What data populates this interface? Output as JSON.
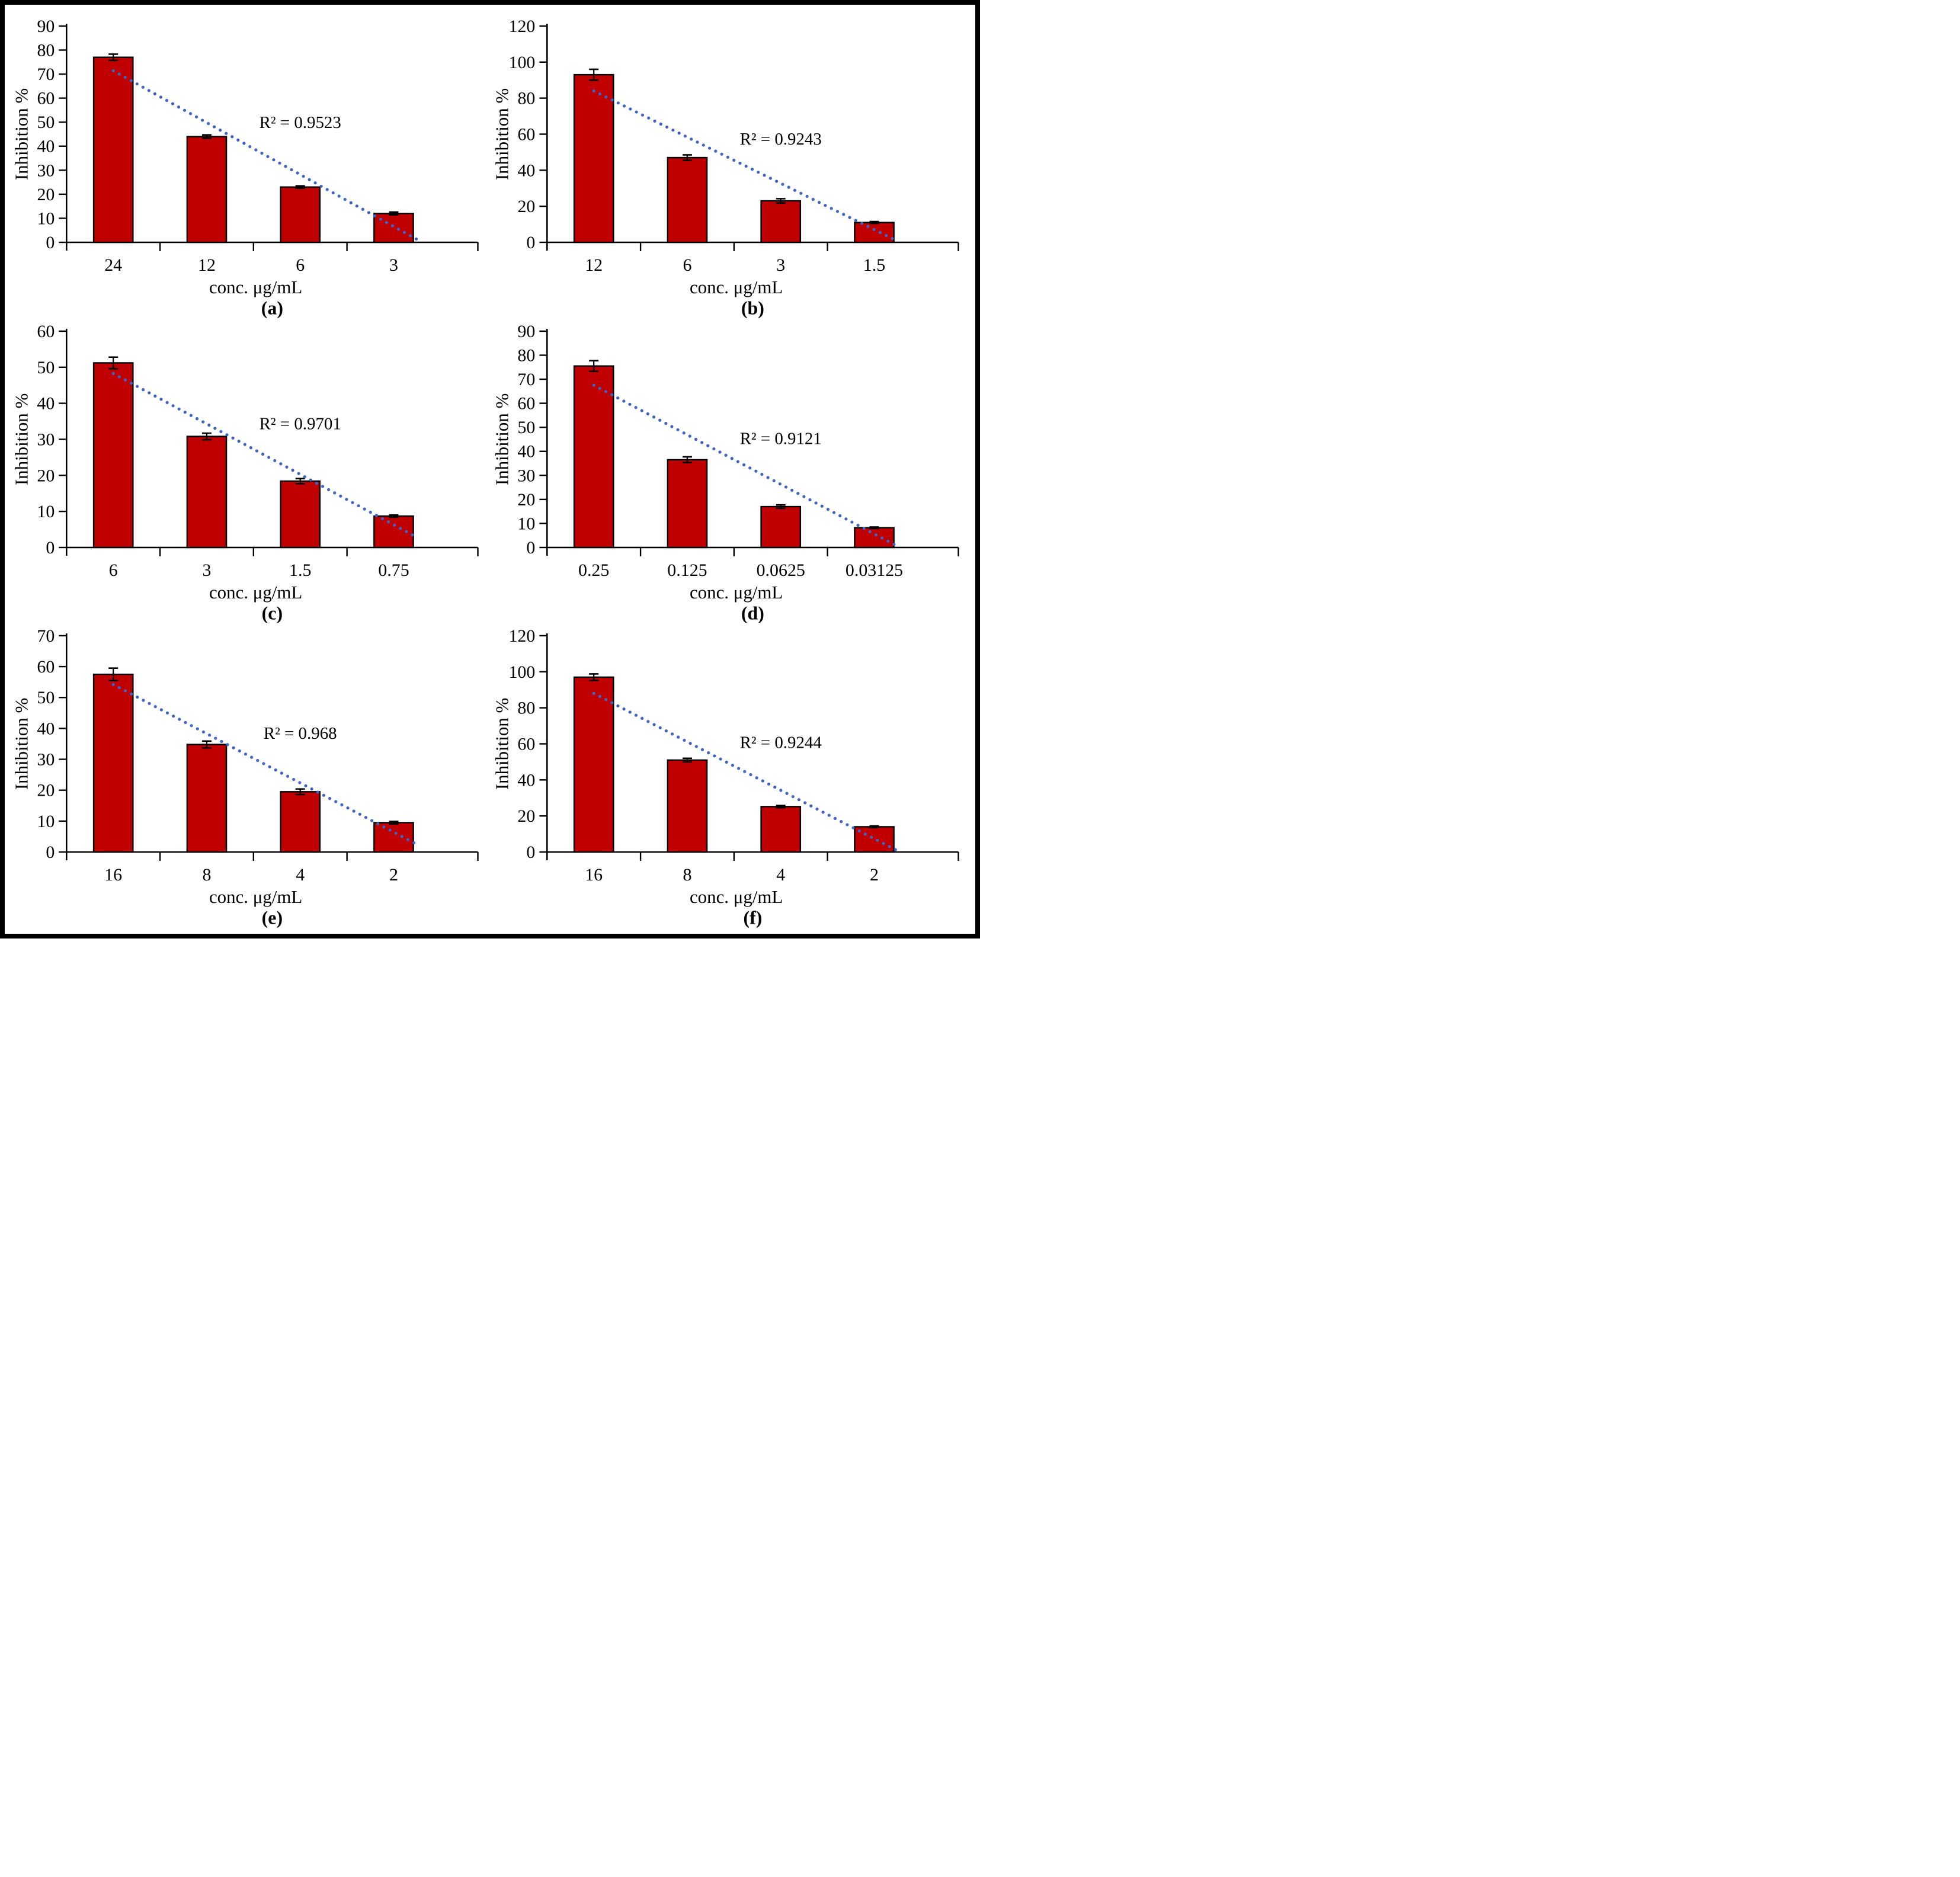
{
  "figure": {
    "bar_color": "#C00000",
    "bar_border_color": "#000000",
    "trend_color": "#3F63C6",
    "axis_color": "#000000",
    "error_bar_color": "#000000"
  },
  "chart_data": [
    {
      "type": "bar",
      "panel": "(a)",
      "categories": [
        "24",
        "12",
        "6",
        "3"
      ],
      "values": [
        77,
        44,
        23,
        12
      ],
      "errors": [
        1.3,
        0.7,
        0.5,
        0.6
      ],
      "ylim": [
        0,
        90
      ],
      "ytick_step": 10,
      "r2_label": "R² = 0.9523",
      "xlabel": "conc. μg/mL",
      "ylabel": "Inhibition %",
      "trendline": "linear-dotted",
      "legend": "none",
      "grid": "off"
    },
    {
      "type": "bar",
      "panel": "(b)",
      "categories": [
        "12",
        "6",
        "3",
        "1.5"
      ],
      "values": [
        93,
        47,
        23,
        11
      ],
      "errors": [
        3,
        1.5,
        1.2,
        0.5
      ],
      "ylim": [
        0,
        120
      ],
      "ytick_step": 20,
      "r2_label": "R² = 0.9243",
      "xlabel": "conc. μg/mL",
      "ylabel": "Inhibition %",
      "trendline": "linear-dotted",
      "legend": "none",
      "grid": "off"
    },
    {
      "type": "bar",
      "panel": "(c)",
      "categories": [
        "6",
        "3",
        "1.5",
        "0.75"
      ],
      "values": [
        51.2,
        30.8,
        18.4,
        8.7
      ],
      "errors": [
        1.6,
        0.9,
        0.7,
        0.3
      ],
      "ylim": [
        0,
        60
      ],
      "ytick_step": 10,
      "r2_label": "R² = 0.9701",
      "xlabel": "conc. μg/mL",
      "ylabel": "Inhibition %",
      "trendline": "linear-dotted",
      "legend": "none",
      "grid": "off"
    },
    {
      "type": "bar",
      "panel": "(d)",
      "categories": [
        "0.25",
        "0.125",
        "0.0625",
        "0.03125"
      ],
      "values": [
        75.5,
        36.5,
        17,
        8.2
      ],
      "errors": [
        2.2,
        1.2,
        0.7,
        0.3
      ],
      "ylim": [
        0,
        90
      ],
      "ytick_step": 10,
      "r2_label": "R² = 0.9121",
      "xlabel": "conc. μg/mL",
      "ylabel": "Inhibition %",
      "trendline": "linear-dotted",
      "legend": "none",
      "grid": "off"
    },
    {
      "type": "bar",
      "panel": "(e)",
      "categories": [
        "16",
        "8",
        "4",
        "2"
      ],
      "values": [
        57.5,
        34.8,
        19.5,
        9.5
      ],
      "errors": [
        2,
        1.1,
        0.9,
        0.4
      ],
      "ylim": [
        0,
        70
      ],
      "ytick_step": 10,
      "r2_label": "R² = 0.968",
      "xlabel": "conc. μg/mL",
      "ylabel": "Inhibition %",
      "trendline": "linear-dotted",
      "legend": "none",
      "grid": "off"
    },
    {
      "type": "bar",
      "panel": "(f)",
      "categories": [
        "16",
        "8",
        "4",
        "2"
      ],
      "values": [
        97,
        51,
        25.2,
        14
      ],
      "errors": [
        1.8,
        1,
        0.6,
        0.5
      ],
      "ylim": [
        0,
        120
      ],
      "ytick_step": 20,
      "r2_label": "R² = 0.9244",
      "xlabel": "conc. μg/mL",
      "ylabel": "Inhibition %",
      "trendline": "linear-dotted",
      "legend": "none",
      "grid": "off"
    }
  ]
}
